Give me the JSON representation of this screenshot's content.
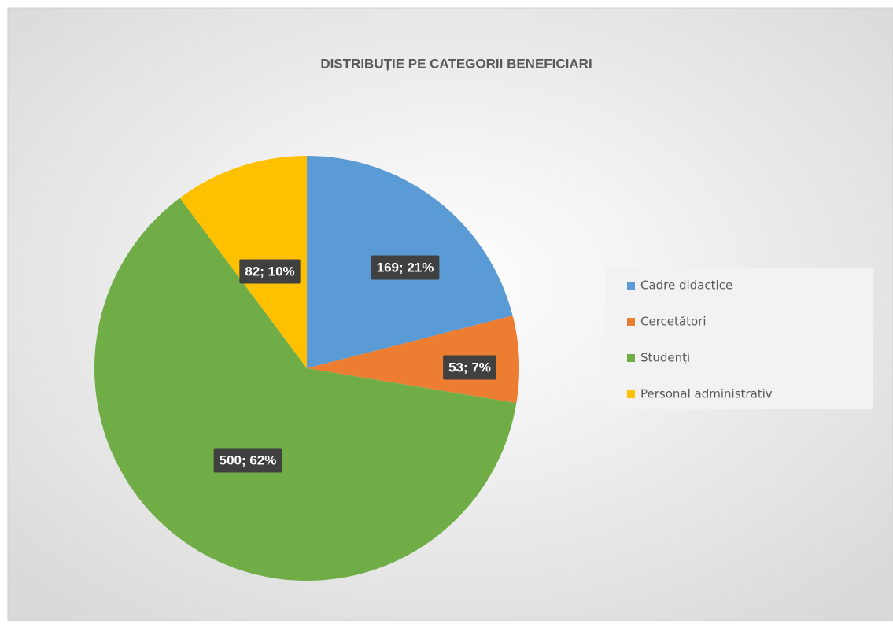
{
  "chart_data": {
    "type": "pie",
    "title": "DISTRIBUȚIE PE CATEGORII BENEFICIARI",
    "categories": [
      "Cadre didactice",
      "Cercetători",
      "Studenți",
      "Personal administrativ"
    ],
    "values": [
      169,
      53,
      500,
      82
    ],
    "value_labels": [
      "169; 21%",
      "53; 7%",
      "500; 62%",
      "82; 10%"
    ],
    "colors": [
      "#5b9bd5",
      "#ed7d31",
      "#70ad47",
      "#ffc000"
    ],
    "legend": "right"
  }
}
